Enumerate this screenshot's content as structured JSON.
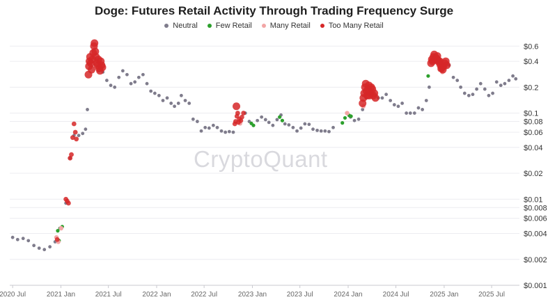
{
  "chart_data": {
    "type": "scatter",
    "title": "Doge: Futures Retail Activity Through Trading Frequency Surge",
    "xlabel": "",
    "ylabel": "",
    "y_scale": "log",
    "ylim": [
      0.001,
      0.7
    ],
    "xlim": [
      "2020-06-20",
      "2025-10-15"
    ],
    "grid": true,
    "legend_placement": "top-center",
    "watermark": "CryptoQuant",
    "x_ticks": [
      {
        "date": "2020-07-01",
        "label": "2020 Jul"
      },
      {
        "date": "2021-01-01",
        "label": "2021 Jan"
      },
      {
        "date": "2021-07-01",
        "label": "2021 Jul"
      },
      {
        "date": "2022-01-01",
        "label": "2022 Jan"
      },
      {
        "date": "2022-07-01",
        "label": "2022 Jul"
      },
      {
        "date": "2023-01-01",
        "label": "2023 Jan"
      },
      {
        "date": "2023-07-01",
        "label": "2023 Jul"
      },
      {
        "date": "2024-01-01",
        "label": "2024 Jan"
      },
      {
        "date": "2024-07-01",
        "label": "2024 Jul"
      },
      {
        "date": "2025-01-01",
        "label": "2025 Jan"
      },
      {
        "date": "2025-07-01",
        "label": "2025 Jul"
      }
    ],
    "y_ticks": [
      {
        "value": 0.6,
        "label": "$0.6"
      },
      {
        "value": 0.4,
        "label": "$0.4"
      },
      {
        "value": 0.2,
        "label": "$0.2"
      },
      {
        "value": 0.1,
        "label": "$0.1"
      },
      {
        "value": 0.08,
        "label": "$0.08"
      },
      {
        "value": 0.06,
        "label": "$0.06"
      },
      {
        "value": 0.04,
        "label": "$0.04"
      },
      {
        "value": 0.02,
        "label": "$0.02"
      },
      {
        "value": 0.01,
        "label": "$0.01"
      },
      {
        "value": 0.008,
        "label": "$0.008"
      },
      {
        "value": 0.006,
        "label": "$0.006"
      },
      {
        "value": 0.004,
        "label": "$0.004"
      },
      {
        "value": 0.002,
        "label": "$0.002"
      },
      {
        "value": 0.001,
        "label": "$0.001"
      }
    ],
    "series": [
      {
        "name": "Neutral",
        "color": "#7f7c8c",
        "points": [
          [
            "2020-07-01",
            0.0036
          ],
          [
            "2020-07-20",
            0.0034
          ],
          [
            "2020-08-10",
            0.0035
          ],
          [
            "2020-08-30",
            0.0033
          ],
          [
            "2020-09-20",
            0.0029
          ],
          [
            "2020-10-10",
            0.0027
          ],
          [
            "2020-10-30",
            0.0026
          ],
          [
            "2020-11-20",
            0.0028
          ],
          [
            "2020-12-10",
            0.0032
          ],
          [
            "2020-12-28",
            0.0046
          ],
          [
            "2021-01-20",
            0.009
          ],
          [
            "2021-02-05",
            0.03
          ],
          [
            "2021-02-20",
            0.055
          ],
          [
            "2021-03-10",
            0.055
          ],
          [
            "2021-03-25",
            0.058
          ],
          [
            "2021-04-05",
            0.065
          ],
          [
            "2021-04-12",
            0.11
          ],
          [
            "2021-05-25",
            0.31
          ],
          [
            "2021-06-10",
            0.3
          ],
          [
            "2021-06-25",
            0.24
          ],
          [
            "2021-07-10",
            0.21
          ],
          [
            "2021-07-25",
            0.2
          ],
          [
            "2021-08-10",
            0.26
          ],
          [
            "2021-08-25",
            0.31
          ],
          [
            "2021-09-10",
            0.28
          ],
          [
            "2021-09-25",
            0.22
          ],
          [
            "2021-10-10",
            0.23
          ],
          [
            "2021-10-25",
            0.26
          ],
          [
            "2021-11-10",
            0.28
          ],
          [
            "2021-11-25",
            0.22
          ],
          [
            "2021-12-10",
            0.18
          ],
          [
            "2021-12-25",
            0.17
          ],
          [
            "2022-01-10",
            0.16
          ],
          [
            "2022-01-25",
            0.14
          ],
          [
            "2022-02-10",
            0.15
          ],
          [
            "2022-02-25",
            0.13
          ],
          [
            "2022-03-10",
            0.12
          ],
          [
            "2022-03-25",
            0.13
          ],
          [
            "2022-04-05",
            0.16
          ],
          [
            "2022-04-20",
            0.14
          ],
          [
            "2022-05-05",
            0.13
          ],
          [
            "2022-05-20",
            0.085
          ],
          [
            "2022-06-05",
            0.08
          ],
          [
            "2022-06-20",
            0.062
          ],
          [
            "2022-07-05",
            0.068
          ],
          [
            "2022-07-20",
            0.067
          ],
          [
            "2022-08-05",
            0.072
          ],
          [
            "2022-08-20",
            0.068
          ],
          [
            "2022-09-05",
            0.062
          ],
          [
            "2022-09-20",
            0.06
          ],
          [
            "2022-10-05",
            0.061
          ],
          [
            "2022-10-20",
            0.06
          ],
          [
            "2022-12-05",
            0.1
          ],
          [
            "2022-12-20",
            0.08
          ],
          [
            "2023-01-05",
            0.072
          ],
          [
            "2023-01-20",
            0.082
          ],
          [
            "2023-02-05",
            0.09
          ],
          [
            "2023-02-20",
            0.084
          ],
          [
            "2023-03-05",
            0.078
          ],
          [
            "2023-03-20",
            0.072
          ],
          [
            "2023-04-05",
            0.084
          ],
          [
            "2023-04-20",
            0.095
          ],
          [
            "2023-05-05",
            0.075
          ],
          [
            "2023-05-20",
            0.073
          ],
          [
            "2023-06-05",
            0.068
          ],
          [
            "2023-06-20",
            0.062
          ],
          [
            "2023-07-05",
            0.067
          ],
          [
            "2023-07-20",
            0.075
          ],
          [
            "2023-08-05",
            0.074
          ],
          [
            "2023-08-20",
            0.065
          ],
          [
            "2023-09-05",
            0.063
          ],
          [
            "2023-09-20",
            0.062
          ],
          [
            "2023-10-05",
            0.062
          ],
          [
            "2023-10-20",
            0.061
          ],
          [
            "2023-11-05",
            0.068
          ],
          [
            "2024-01-10",
            0.09
          ],
          [
            "2024-01-25",
            0.082
          ],
          [
            "2024-02-10",
            0.085
          ],
          [
            "2024-02-25",
            0.11
          ],
          [
            "2024-03-10",
            0.15
          ],
          [
            "2024-03-25",
            0.17
          ],
          [
            "2024-04-25",
            0.15
          ],
          [
            "2024-05-10",
            0.15
          ],
          [
            "2024-05-25",
            0.165
          ],
          [
            "2024-06-10",
            0.14
          ],
          [
            "2024-06-25",
            0.125
          ],
          [
            "2024-07-10",
            0.12
          ],
          [
            "2024-07-25",
            0.13
          ],
          [
            "2024-08-10",
            0.1
          ],
          [
            "2024-08-25",
            0.1
          ],
          [
            "2024-09-10",
            0.1
          ],
          [
            "2024-09-25",
            0.115
          ],
          [
            "2024-10-10",
            0.11
          ],
          [
            "2024-10-25",
            0.14
          ],
          [
            "2024-11-05",
            0.2
          ],
          [
            "2025-01-20",
            0.36
          ],
          [
            "2025-02-05",
            0.26
          ],
          [
            "2025-02-20",
            0.24
          ],
          [
            "2025-03-05",
            0.2
          ],
          [
            "2025-03-20",
            0.17
          ],
          [
            "2025-04-05",
            0.16
          ],
          [
            "2025-04-20",
            0.165
          ],
          [
            "2025-05-05",
            0.19
          ],
          [
            "2025-05-20",
            0.22
          ],
          [
            "2025-06-05",
            0.19
          ],
          [
            "2025-06-20",
            0.16
          ],
          [
            "2025-07-05",
            0.17
          ],
          [
            "2025-07-20",
            0.23
          ],
          [
            "2025-08-05",
            0.21
          ],
          [
            "2025-08-20",
            0.22
          ],
          [
            "2025-09-05",
            0.24
          ],
          [
            "2025-09-20",
            0.27
          ],
          [
            "2025-10-01",
            0.25
          ]
        ]
      },
      {
        "name": "Few Retail",
        "color": "#2ca02c",
        "points": [
          [
            "2020-12-20",
            0.0043
          ],
          [
            "2020-12-25",
            0.0033
          ],
          [
            "2020-12-30",
            0.0046
          ],
          [
            "2021-01-06",
            0.0048
          ],
          [
            "2022-12-28",
            0.076
          ],
          [
            "2023-01-05",
            0.072
          ],
          [
            "2023-04-15",
            0.09
          ],
          [
            "2023-04-25",
            0.082
          ],
          [
            "2023-12-10",
            0.077
          ],
          [
            "2023-12-20",
            0.088
          ],
          [
            "2024-01-05",
            0.094
          ],
          [
            "2024-01-12",
            0.092
          ],
          [
            "2024-11-01",
            0.27
          ]
        ]
      },
      {
        "name": "Many Retail",
        "color": "#f2a6a6",
        "points": [
          [
            "2020-12-15",
            0.0036
          ],
          [
            "2020-12-22",
            0.0032
          ],
          [
            "2021-01-02",
            0.0046
          ],
          [
            "2022-11-15",
            0.076
          ],
          [
            "2023-12-28",
            0.1
          ],
          [
            "2024-02-28",
            0.12
          ],
          [
            "2024-12-05",
            0.43
          ],
          [
            "2024-12-15",
            0.32
          ],
          [
            "2024-12-25",
            0.3
          ]
        ]
      },
      {
        "name": "Too Many Retail",
        "color": "#d62728",
        "points": [
          [
            "2020-12-18",
            0.0034
          ],
          [
            "2021-01-20",
            0.01
          ],
          [
            "2021-01-25",
            0.0095
          ],
          [
            "2021-01-30",
            0.009
          ],
          [
            "2021-02-05",
            0.03
          ],
          [
            "2021-02-10",
            0.033
          ],
          [
            "2021-02-15",
            0.052
          ],
          [
            "2021-02-20",
            0.075
          ],
          [
            "2021-02-25",
            0.06
          ],
          [
            "2021-03-01",
            0.05
          ],
          [
            "2021-04-16",
            0.28
          ],
          [
            "2021-04-18",
            0.35
          ],
          [
            "2021-04-20",
            0.4
          ],
          [
            "2021-04-22",
            0.45
          ],
          [
            "2021-04-25",
            0.38
          ],
          [
            "2021-04-28",
            0.32
          ],
          [
            "2021-05-01",
            0.42
          ],
          [
            "2021-05-04",
            0.5
          ],
          [
            "2021-05-07",
            0.6
          ],
          [
            "2021-05-09",
            0.65
          ],
          [
            "2021-05-12",
            0.52
          ],
          [
            "2021-05-15",
            0.45
          ],
          [
            "2021-05-18",
            0.38
          ],
          [
            "2021-05-21",
            0.36
          ],
          [
            "2021-05-24",
            0.42
          ],
          [
            "2021-05-27",
            0.33
          ],
          [
            "2021-05-30",
            0.31
          ],
          [
            "2021-06-02",
            0.4
          ],
          [
            "2021-06-05",
            0.36
          ],
          [
            "2021-06-08",
            0.34
          ],
          [
            "2022-10-26",
            0.075
          ],
          [
            "2022-10-29",
            0.08
          ],
          [
            "2022-11-01",
            0.12
          ],
          [
            "2022-11-03",
            0.092
          ],
          [
            "2022-11-06",
            0.1
          ],
          [
            "2022-11-09",
            0.078
          ],
          [
            "2022-11-12",
            0.085
          ],
          [
            "2022-11-18",
            0.082
          ],
          [
            "2022-11-22",
            0.09
          ],
          [
            "2022-11-28",
            0.1
          ],
          [
            "2024-02-25",
            0.13
          ],
          [
            "2024-02-28",
            0.15
          ],
          [
            "2024-03-02",
            0.17
          ],
          [
            "2024-03-05",
            0.2
          ],
          [
            "2024-03-08",
            0.22
          ],
          [
            "2024-03-11",
            0.18
          ],
          [
            "2024-03-14",
            0.16
          ],
          [
            "2024-03-17",
            0.19
          ],
          [
            "2024-03-20",
            0.21
          ],
          [
            "2024-03-23",
            0.16
          ],
          [
            "2024-03-26",
            0.17
          ],
          [
            "2024-03-29",
            0.2
          ],
          [
            "2024-04-02",
            0.19
          ],
          [
            "2024-04-06",
            0.16
          ],
          [
            "2024-04-10",
            0.17
          ],
          [
            "2024-04-14",
            0.15
          ],
          [
            "2024-11-12",
            0.38
          ],
          [
            "2024-11-15",
            0.42
          ],
          [
            "2024-11-18",
            0.4
          ],
          [
            "2024-11-21",
            0.45
          ],
          [
            "2024-11-24",
            0.48
          ],
          [
            "2024-11-27",
            0.42
          ],
          [
            "2024-11-30",
            0.44
          ],
          [
            "2024-12-03",
            0.43
          ],
          [
            "2024-12-06",
            0.46
          ],
          [
            "2024-12-09",
            0.41
          ],
          [
            "2024-12-12",
            0.39
          ],
          [
            "2024-12-15",
            0.4
          ],
          [
            "2024-12-18",
            0.36
          ],
          [
            "2024-12-21",
            0.33
          ],
          [
            "2024-12-24",
            0.34
          ],
          [
            "2024-12-27",
            0.32
          ],
          [
            "2024-12-30",
            0.35
          ],
          [
            "2025-01-03",
            0.38
          ],
          [
            "2025-01-07",
            0.4
          ],
          [
            "2025-01-11",
            0.36
          ]
        ]
      }
    ]
  }
}
